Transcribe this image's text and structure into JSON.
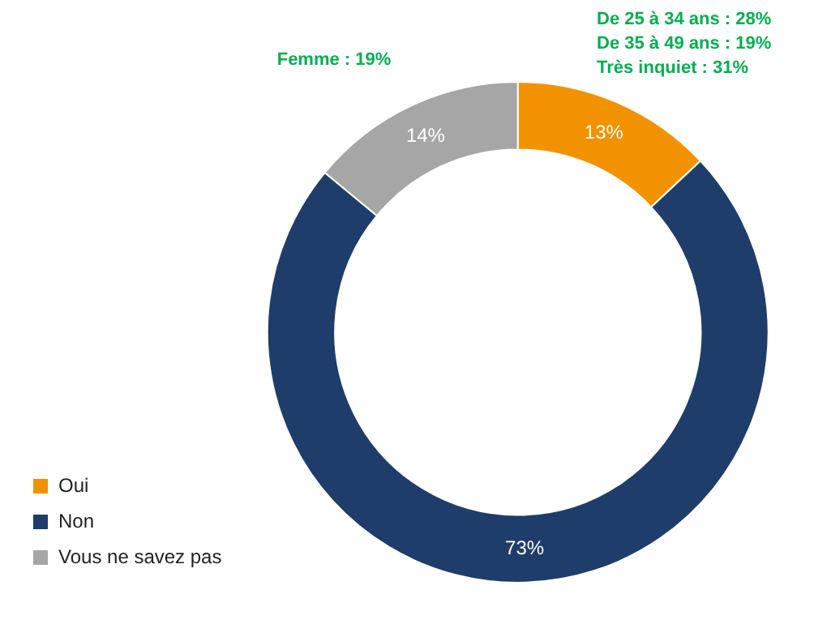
{
  "chart_data": {
    "type": "donut",
    "categories": [
      "Oui",
      "Non",
      "Vous ne savez pas"
    ],
    "values": [
      13,
      73,
      14
    ],
    "colors": [
      "#f39200",
      "#1f3d6b",
      "#a6a6a6"
    ],
    "value_labels": [
      "13%",
      "73%",
      "14%"
    ],
    "legend": "bottom left",
    "annotations": [
      "Femme : 19%",
      "De 25 à 34 ans : 28%",
      "De 35 à 49 ans : 19%",
      "Très inquiet : 31%"
    ]
  }
}
